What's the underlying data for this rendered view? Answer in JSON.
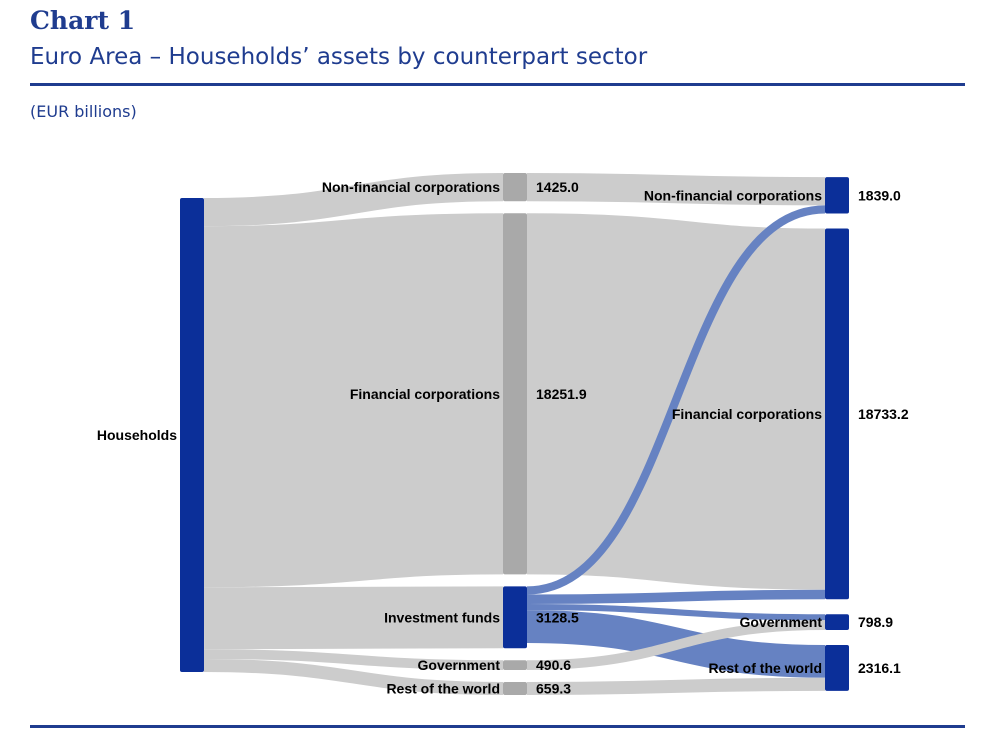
{
  "header": {
    "kicker": "Chart 1",
    "title": "Euro Area – Households’ assets by counterpart sector",
    "units": "(EUR billions)"
  },
  "chart_data": {
    "type": "sankey",
    "title": "Euro Area – Households’ assets by counterpart sector",
    "units": "EUR billions",
    "colors": {
      "node_primary": "#0b2f99",
      "node_intermediate": "#a9a9a9",
      "flow_grey": "#cccccc",
      "flow_blue": "#6682c2"
    },
    "nodes": [
      {
        "id": "hh",
        "label": "Households",
        "column": 0
      },
      {
        "id": "nfc1",
        "label": "Non-financial corporations",
        "column": 1,
        "value": 1425.0,
        "value_label": "1425.0"
      },
      {
        "id": "fc1",
        "label": "Financial corporations",
        "column": 1,
        "value": 18251.9,
        "value_label": "18251.9"
      },
      {
        "id": "if1",
        "label": "Investment funds",
        "column": 1,
        "value": 3128.5,
        "value_label": "3128.5"
      },
      {
        "id": "gov1",
        "label": "Government",
        "column": 1,
        "value": 490.6,
        "value_label": "490.6"
      },
      {
        "id": "row1",
        "label": "Rest of the world",
        "column": 1,
        "value": 659.3,
        "value_label": "659.3"
      },
      {
        "id": "nfc2",
        "label": "Non-financial corporations",
        "column": 2,
        "value": 1839.0,
        "value_label": "1839.0"
      },
      {
        "id": "fc2",
        "label": "Financial corporations",
        "column": 2,
        "value": 18733.2,
        "value_label": "18733.2"
      },
      {
        "id": "gov2",
        "label": "Government",
        "column": 2,
        "value": 798.9,
        "value_label": "798.9"
      },
      {
        "id": "row2",
        "label": "Rest of the world",
        "column": 2,
        "value": 2316.1,
        "value_label": "2316.1"
      }
    ],
    "links": [
      {
        "source": "hh",
        "target": "nfc1",
        "value": 1425.0
      },
      {
        "source": "hh",
        "target": "fc1",
        "value": 18251.9
      },
      {
        "source": "hh",
        "target": "if1",
        "value": 3128.5
      },
      {
        "source": "hh",
        "target": "gov1",
        "value": 490.6
      },
      {
        "source": "hh",
        "target": "row1",
        "value": 659.3
      },
      {
        "source": "nfc1",
        "target": "nfc2",
        "value": 1425.0
      },
      {
        "source": "fc1",
        "target": "fc2",
        "value": 18251.9
      },
      {
        "source": "if1",
        "target": "nfc2",
        "value": 414.0
      },
      {
        "source": "if1",
        "target": "fc2",
        "value": 481.3
      },
      {
        "source": "if1",
        "target": "gov2",
        "value": 308.3
      },
      {
        "source": "if1",
        "target": "row2",
        "value": 1656.8
      },
      {
        "source": "gov1",
        "target": "gov2",
        "value": 490.6
      },
      {
        "source": "row1",
        "target": "row2",
        "value": 659.3
      }
    ]
  }
}
